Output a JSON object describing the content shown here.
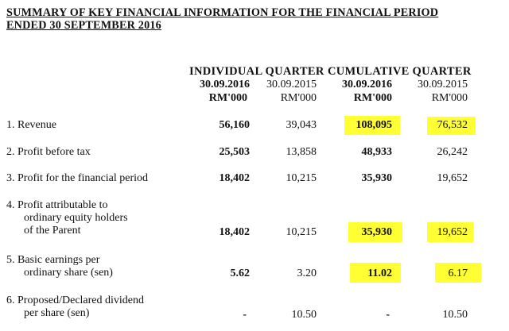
{
  "title": {
    "line1": "SUMMARY OF KEY FINANCIAL INFORMATION FOR THE FINANCIAL PERIOD",
    "line2": "ENDED 30 SEPTEMBER 2016"
  },
  "groups": {
    "individual": "INDIVIDUAL QUARTER",
    "cumulative": "CUMULATIVE QUARTER"
  },
  "columns": [
    {
      "date": "30.09.2016",
      "unit": "RM'000"
    },
    {
      "date": "30.09.2015",
      "unit": "RM'000"
    },
    {
      "date": "30.09.2016",
      "unit": "RM'000"
    },
    {
      "date": "30.09.2015",
      "unit": "RM'000"
    }
  ],
  "rows": [
    {
      "label_lines": [
        "1. Revenue"
      ],
      "values": [
        "56,160",
        "39,043",
        "108,095",
        "76,532"
      ],
      "highlighted": [
        false,
        false,
        true,
        true
      ]
    },
    {
      "label_lines": [
        "2. Profit before tax"
      ],
      "values": [
        "25,503",
        "13,858",
        "48,933",
        "26,242"
      ],
      "highlighted": [
        false,
        false,
        false,
        false
      ]
    },
    {
      "label_lines": [
        "3. Profit for the financial period"
      ],
      "values": [
        "18,402",
        "10,215",
        "35,930",
        "19,652"
      ],
      "highlighted": [
        false,
        false,
        false,
        false
      ]
    },
    {
      "label_lines": [
        "4. Profit attributable to",
        "ordinary equity holders",
        "of the Parent"
      ],
      "values": [
        "18,402",
        "10,215",
        "35,930",
        "19,652"
      ],
      "highlighted": [
        false,
        false,
        true,
        true
      ]
    },
    {
      "label_lines": [
        "5. Basic earnings per",
        "ordinary share (sen)"
      ],
      "values": [
        "5.62",
        "3.20",
        "11.02",
        "6.17"
      ],
      "highlighted": [
        false,
        false,
        true,
        true
      ]
    },
    {
      "label_lines": [
        "6. Proposed/Declared dividend",
        "per share (sen)"
      ],
      "values": [
        "-",
        "10.50",
        "-",
        "10.50"
      ],
      "highlighted": [
        false,
        false,
        false,
        false
      ]
    }
  ],
  "colors": {
    "highlight": "#ffff33",
    "text": "#111111"
  }
}
